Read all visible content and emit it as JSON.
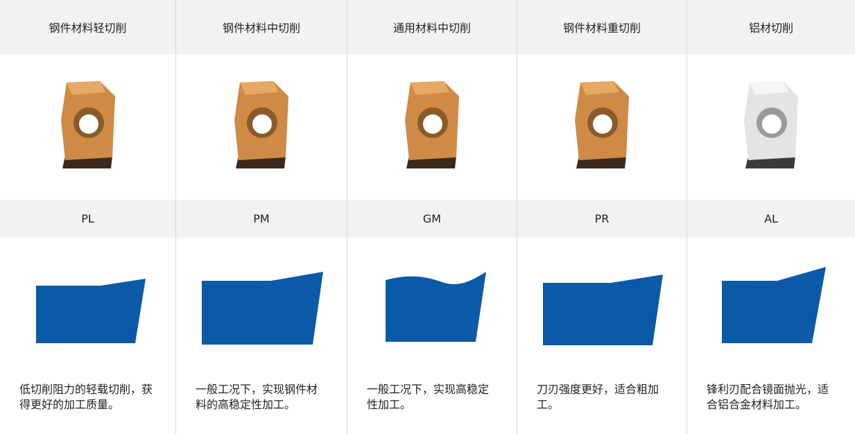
{
  "table": {
    "header": [
      "钢件材料轻切削",
      "钢件材料中切削",
      "通用材料中切削",
      "钢件材料重切削",
      "铝材切削"
    ],
    "codes": [
      "PL",
      "PM",
      "GM",
      "PR",
      "AL"
    ],
    "descriptions": [
      "低切削阻力的轻载切削，获得更好的加工质量。",
      "一般工况下，实现钢件材料的高稳定性加工。",
      "一般工况下，实现高稳定性加工。",
      "刀刃强度更好，适合粗加工。",
      "锋利刃配合镜面抛光，适合铝合金材料加工。"
    ]
  }
}
